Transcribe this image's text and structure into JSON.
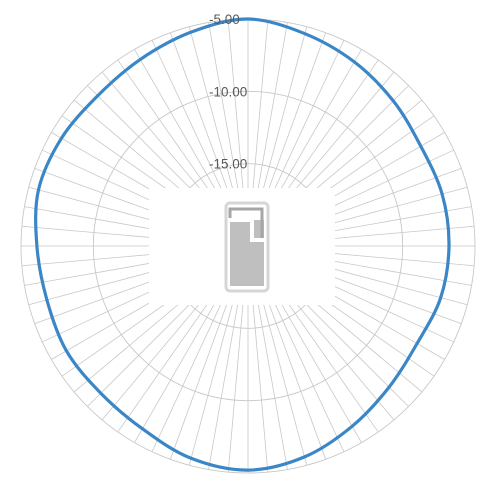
{
  "chart_data": {
    "type": "radar",
    "title": "",
    "radial_ticks": [
      "-5.00",
      "-10.00",
      "-15.00"
    ],
    "radial_tick_values": [
      -5,
      -10,
      -15
    ],
    "r_range": [
      -20,
      -5
    ],
    "spoke_count": 72,
    "grid": true,
    "angle_unit": "degrees",
    "series": [
      {
        "color": "#3b86c6",
        "points": [
          {
            "angle": 0,
            "value": -5.0
          },
          {
            "angle": 15,
            "value": -5.5
          },
          {
            "angle": 30,
            "value": -6.0
          },
          {
            "angle": 45,
            "value": -6.5
          },
          {
            "angle": 60,
            "value": -6.9
          },
          {
            "angle": 75,
            "value": -6.8
          },
          {
            "angle": 90,
            "value": -6.8
          },
          {
            "angle": 105,
            "value": -6.9
          },
          {
            "angle": 120,
            "value": -7.2
          },
          {
            "angle": 135,
            "value": -6.9
          },
          {
            "angle": 150,
            "value": -6.3
          },
          {
            "angle": 165,
            "value": -5.6
          },
          {
            "angle": 180,
            "value": -5.2
          },
          {
            "angle": 195,
            "value": -5.5
          },
          {
            "angle": 210,
            "value": -6.1
          },
          {
            "angle": 225,
            "value": -6.3
          },
          {
            "angle": 240,
            "value": -6.2
          },
          {
            "angle": 255,
            "value": -6.3
          },
          {
            "angle": 270,
            "value": -6.1
          },
          {
            "angle": 285,
            "value": -5.7
          },
          {
            "angle": 300,
            "value": -5.8
          },
          {
            "angle": 315,
            "value": -6.0
          },
          {
            "angle": 330,
            "value": -5.8
          },
          {
            "angle": 345,
            "value": -5.4
          }
        ]
      }
    ]
  },
  "colors": {
    "grid": "#c8c8c8",
    "label": "#595959",
    "device_outline": "#d6d6d6",
    "device_body": "#bfbfbf"
  },
  "device": {
    "icon": "phone-device-icon"
  }
}
